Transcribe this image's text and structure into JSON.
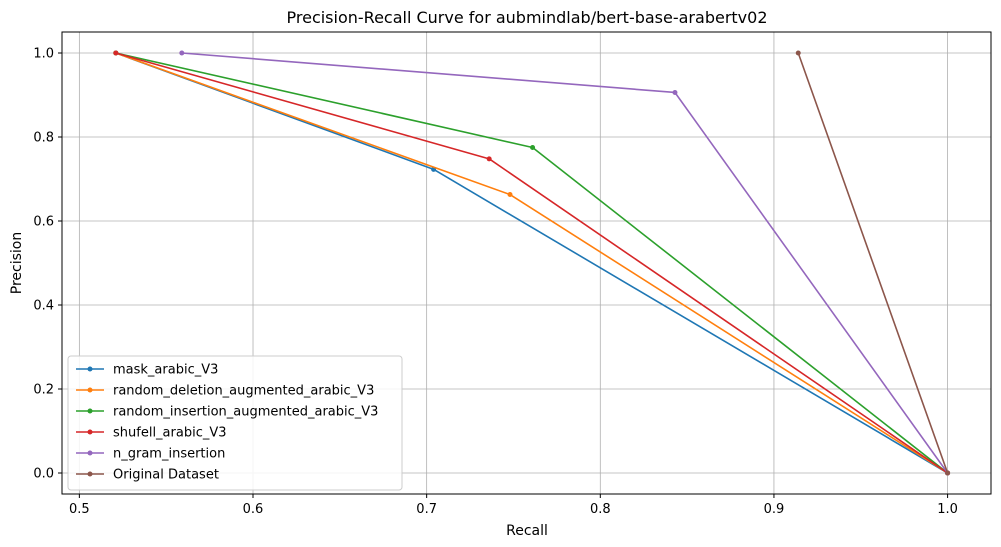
{
  "chart_data": {
    "type": "line",
    "title": "Precision-Recall Curve for aubmindlab/bert-base-arabertv02",
    "xlabel": "Recall",
    "ylabel": "Precision",
    "xlim": [
      0.49,
      1.025
    ],
    "ylim": [
      -0.05,
      1.05
    ],
    "xticks": [
      0.5,
      0.6,
      0.7,
      0.8,
      0.9,
      1.0
    ],
    "xtick_labels": [
      "0.5",
      "0.6",
      "0.7",
      "0.8",
      "0.9",
      "1.0"
    ],
    "yticks": [
      0.0,
      0.2,
      0.4,
      0.6,
      0.8,
      1.0
    ],
    "ytick_labels": [
      "0.0",
      "0.2",
      "0.4",
      "0.6",
      "0.8",
      "1.0"
    ],
    "grid": true,
    "legend_position": "lower-left",
    "series": [
      {
        "name": "mask_arabic_V3",
        "color": "#1f77b4",
        "x": [
          0.521,
          0.704,
          1.0
        ],
        "y": [
          1.0,
          0.723,
          0.0
        ]
      },
      {
        "name": "random_deletion_augmented_arabic_V3",
        "color": "#ff7f0e",
        "x": [
          0.521,
          0.748,
          1.0
        ],
        "y": [
          1.0,
          0.663,
          0.0
        ]
      },
      {
        "name": "random_insertion_augmented_arabic_V3",
        "color": "#2ca02c",
        "x": [
          0.521,
          0.761,
          1.0
        ],
        "y": [
          1.0,
          0.775,
          0.0
        ]
      },
      {
        "name": "shufell_arabic_V3",
        "color": "#d62728",
        "x": [
          0.521,
          0.736,
          1.0
        ],
        "y": [
          1.0,
          0.748,
          0.0
        ]
      },
      {
        "name": "n_gram_insertion",
        "color": "#9467bd",
        "x": [
          0.559,
          0.843,
          1.0
        ],
        "y": [
          1.0,
          0.906,
          0.0
        ]
      },
      {
        "name": "Original Dataset",
        "color": "#8c564b",
        "x": [
          0.914,
          1.0
        ],
        "y": [
          1.0,
          0.0
        ]
      }
    ]
  }
}
